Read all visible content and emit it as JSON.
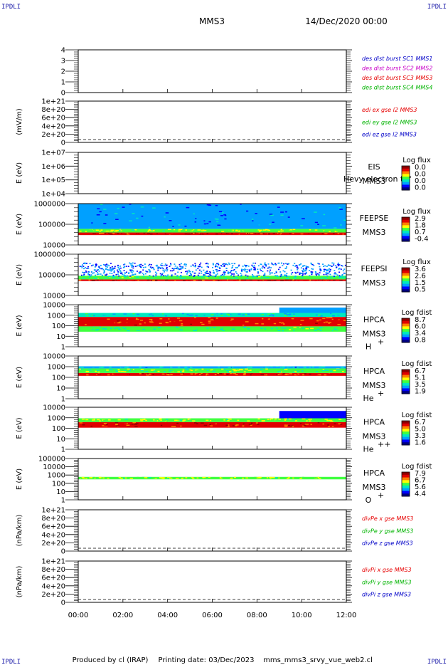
{
  "corner_label": "IPDLI",
  "header": {
    "spacecraft": "MMS3",
    "datetime": "14/Dec/2020 00:00"
  },
  "footer": {
    "produced_by": "Produced by cl (IRAP)",
    "printing_date": "Printing date: 03/Dec/2023",
    "filename": "mms_mms3_srvy_vue_web2.cl"
  },
  "x_axis": {
    "tick_labels": [
      "00:00",
      "02:00",
      "04:00",
      "06:00",
      "08:00",
      "10:00",
      "12:00"
    ],
    "range_hours": [
      0,
      12
    ]
  },
  "colors": {
    "blue": "#0000c8",
    "magenta": "#c800c8",
    "red": "#e60000",
    "green": "#00b400",
    "spectrogram": [
      "#000080",
      "#0000ff",
      "#00a0ff",
      "#00e8c0",
      "#40ff40",
      "#ffff00",
      "#ff8000",
      "#e00000",
      "#900000"
    ]
  },
  "panels": [
    {
      "id": "burst",
      "ylabel": "",
      "yticks": [
        "4",
        "3",
        "2",
        "1",
        "0"
      ],
      "legend": [
        {
          "text": "des dist burst SC1 MMS1",
          "color": "#0000c8"
        },
        {
          "text": "des dist burst SC2 MMS2",
          "color": "#c800c8"
        },
        {
          "text": "des dist burst SC3 MMS3",
          "color": "#e60000"
        },
        {
          "text": "des dist burst SC4 MMS4",
          "color": "#00b400"
        }
      ]
    },
    {
      "id": "edi",
      "ylabel": "(mV/m)",
      "yticks": [
        "1e+21",
        "8e+20",
        "6e+20",
        "4e+20",
        "2e+20",
        "0"
      ],
      "legend": [
        {
          "text": "edi ex gse l2 MMS3",
          "color": "#e60000"
        },
        {
          "text": "edi ey gse l2 MMS3",
          "color": "#00b400"
        },
        {
          "text": "edi ez gse l2 MMS3",
          "color": "#0000c8"
        }
      ]
    },
    {
      "id": "eis",
      "ylabel": "E (eV)",
      "yticks": [
        "1e+07",
        "1e+06",
        "1e+05",
        "1e+04"
      ],
      "side": [
        "EIS",
        "MMS3"
      ],
      "overlay_text": "Hevy electron tof",
      "colorbar": {
        "title": "Log flux",
        "labels": [
          "0.0",
          "0.0",
          "0.0",
          "0.0"
        ]
      }
    },
    {
      "id": "feepse",
      "ylabel": "E (eV)",
      "yticks": [
        "1000000",
        "100000",
        "10000"
      ],
      "side": [
        "FEEPSE",
        "MMS3"
      ],
      "colorbar": {
        "title": "Log flux",
        "labels": [
          "2.9",
          "1.8",
          "0.7",
          "-0.4"
        ]
      }
    },
    {
      "id": "feepsi",
      "ylabel": "E (eV)",
      "yticks": [
        "1000000",
        "100000",
        "10000"
      ],
      "side": [
        "FEEPSI",
        "MMS3"
      ],
      "colorbar": {
        "title": "Log flux",
        "labels": [
          "3.6",
          "2.6",
          "1.5",
          "0.5"
        ]
      }
    },
    {
      "id": "hpca-h",
      "ylabel": "E (eV)",
      "yticks": [
        "10000",
        "1000",
        "100",
        "10",
        "1"
      ],
      "side": [
        "HPCA",
        "MMS3",
        "H",
        "+"
      ],
      "colorbar": {
        "title": "Log fdist",
        "labels": [
          "8.7",
          "6.0",
          "3.4",
          "0.8"
        ]
      }
    },
    {
      "id": "hpca-he",
      "ylabel": "E (eV)",
      "yticks": [
        "10000",
        "1000",
        "100",
        "10",
        "1"
      ],
      "side": [
        "HPCA",
        "MMS3",
        "He",
        "+"
      ],
      "colorbar": {
        "title": "Log fdist",
        "labels": [
          "6.7",
          "5.1",
          "3.5",
          "1.9"
        ]
      }
    },
    {
      "id": "hpca-he2",
      "ylabel": "E (eV)",
      "yticks": [
        "10000",
        "1000",
        "100",
        "10",
        "1"
      ],
      "side": [
        "HPCA",
        "MMS3",
        "He",
        "++"
      ],
      "colorbar": {
        "title": "Log fdist",
        "labels": [
          "6.7",
          "5.0",
          "3.3",
          "1.6"
        ]
      }
    },
    {
      "id": "hpca-o",
      "ylabel": "E (eV)",
      "yticks": [
        "100000",
        "10000",
        "1000",
        "100",
        "10",
        "1"
      ],
      "side": [
        "HPCA",
        "MMS3",
        "O",
        "+"
      ],
      "colorbar": {
        "title": "Log fdist",
        "labels": [
          "7.9",
          "6.7",
          "5.6",
          "4.4"
        ]
      }
    },
    {
      "id": "divpe",
      "ylabel": "(nPa/km)",
      "yticks": [
        "1e+21",
        "8e+20",
        "6e+20",
        "4e+20",
        "2e+20",
        "0"
      ],
      "legend": [
        {
          "text": "divPe x gse MMS3",
          "color": "#e60000"
        },
        {
          "text": "divPe y gse MMS3",
          "color": "#00b400"
        },
        {
          "text": "divPe z gse MMS3",
          "color": "#0000c8"
        }
      ]
    },
    {
      "id": "divpi",
      "ylabel": "(nPa/km)",
      "yticks": [
        "1e+21",
        "8e+20",
        "6e+20",
        "4e+20",
        "2e+20",
        "0"
      ],
      "legend": [
        {
          "text": "divPi x gse MMS3",
          "color": "#e60000"
        },
        {
          "text": "divPi y gse MMS3",
          "color": "#00b400"
        },
        {
          "text": "divPi z gse MMS3",
          "color": "#0000c8"
        }
      ]
    }
  ],
  "chart_data": [
    {
      "type": "line",
      "panel": "burst",
      "ylim": [
        0,
        4
      ],
      "series": []
    },
    {
      "type": "line",
      "panel": "edi",
      "ylim": [
        0,
        1e+21
      ],
      "series": []
    },
    {
      "type": "heatmap",
      "panel": "eis",
      "ylim_eV": [
        10000.0,
        10000000.0
      ],
      "log_y": true,
      "content": "no data"
    },
    {
      "type": "heatmap",
      "panel": "feepse",
      "ylim_eV": [
        10000.0,
        1000000.0
      ],
      "log_y": true,
      "bands": [
        {
          "e_min": 30000,
          "e_max": 40000,
          "level": 0.9
        },
        {
          "e_min": 40000,
          "e_max": 60000,
          "level": 0.55
        },
        {
          "e_min": 60000,
          "e_max": 1000000,
          "level": 0.25
        }
      ]
    },
    {
      "type": "heatmap",
      "panel": "feepsi",
      "ylim_eV": [
        10000.0,
        1000000.0
      ],
      "log_y": true,
      "bands": [
        {
          "e_min": 50000,
          "e_max": 60000,
          "level": 0.9
        },
        {
          "e_min": 60000,
          "e_max": 90000,
          "level": 0.45
        },
        {
          "e_min": 90000,
          "e_max": 400000,
          "level": 0.15,
          "sparse": true
        }
      ]
    },
    {
      "type": "heatmap",
      "panel": "hpca-h",
      "ylim_eV": [
        1,
        30000
      ],
      "log_y": true,
      "bands": [
        {
          "e_min": 40,
          "e_max": 150,
          "level": 0.45
        },
        {
          "e_min": 150,
          "e_max": 1500,
          "level": 0.82
        },
        {
          "e_min": 1500,
          "e_max": 4000,
          "level": 0.35
        }
      ],
      "event": {
        "t_start_h": 9.0,
        "t_end_h": 12.0,
        "e_max": 15000,
        "level": 0.3
      }
    },
    {
      "type": "heatmap",
      "panel": "hpca-he",
      "ylim_eV": [
        1,
        30000
      ],
      "log_y": true,
      "bands": [
        {
          "e_min": 250,
          "e_max": 500,
          "level": 0.85
        },
        {
          "e_min": 500,
          "e_max": 1500,
          "level": 0.5
        },
        {
          "e_min": 1500,
          "e_max": 2500,
          "level": 0.3
        }
      ]
    },
    {
      "type": "heatmap",
      "panel": "hpca-he2",
      "ylim_eV": [
        1,
        30000
      ],
      "log_y": true,
      "bands": [
        {
          "e_min": 200,
          "e_max": 800,
          "level": 0.88
        },
        {
          "e_min": 800,
          "e_max": 2000,
          "level": 0.55
        }
      ],
      "event": {
        "t_start_h": 9.0,
        "t_end_h": 12.0,
        "e_max": 12000,
        "level": 0.15
      }
    },
    {
      "type": "heatmap",
      "panel": "hpca-o",
      "ylim_eV": [
        1,
        100000
      ],
      "log_y": true,
      "bands": [
        {
          "e_min": 300,
          "e_max": 600,
          "level": 0.55
        }
      ]
    },
    {
      "type": "line",
      "panel": "divpe",
      "ylim": [
        0,
        1e+21
      ],
      "series": []
    },
    {
      "type": "line",
      "panel": "divpi",
      "ylim": [
        0,
        1e+21
      ],
      "series": []
    }
  ]
}
